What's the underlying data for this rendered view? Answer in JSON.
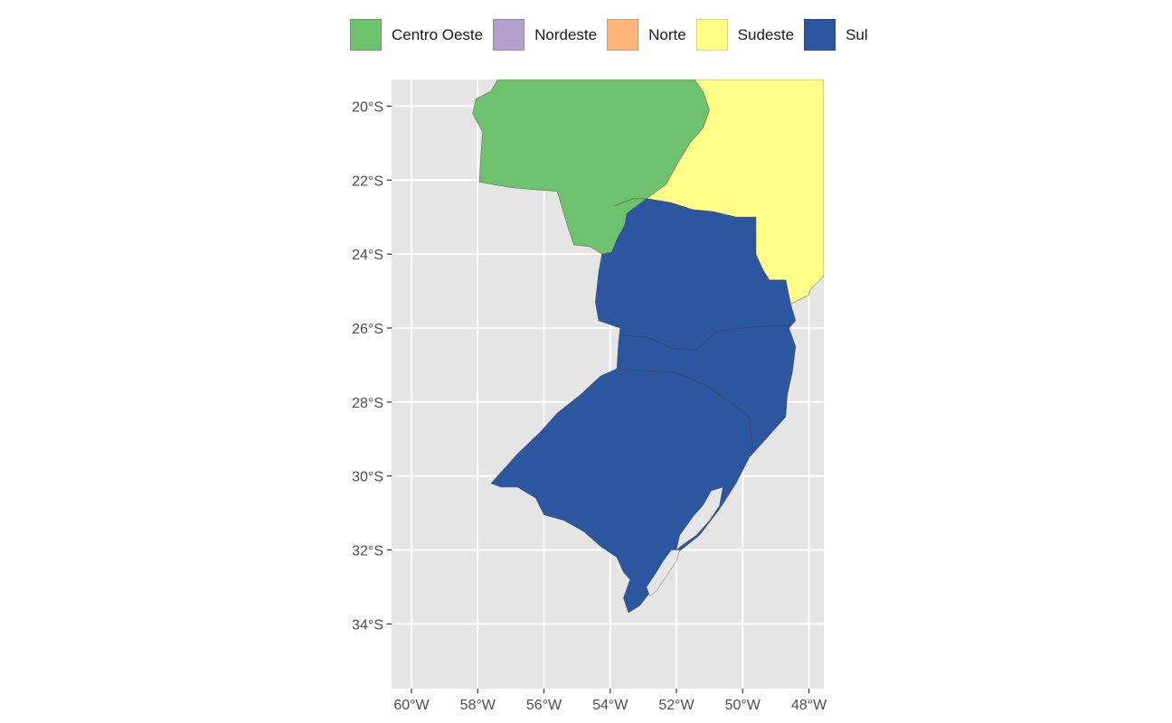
{
  "legend": {
    "items": [
      {
        "label": "Centro Oeste",
        "color": "#6fc26d"
      },
      {
        "label": "Nordeste",
        "color": "#b3a0cd"
      },
      {
        "label": "Norte",
        "color": "#fdb476"
      },
      {
        "label": "Sudeste",
        "color": "#ffff88"
      },
      {
        "label": "Sul",
        "color": "#2d56a0"
      }
    ]
  },
  "chart_data": {
    "type": "map",
    "title": "",
    "panel_background": "#e5e5e5",
    "grid": true,
    "grid_color": "#ffffff",
    "legend_position": "top",
    "xlim": [
      -60.6,
      -47.55
    ],
    "ylim": [
      -35.75,
      -19.28
    ],
    "x_ticks": [
      {
        "value": -60,
        "label": "60°W"
      },
      {
        "value": -58,
        "label": "58°W"
      },
      {
        "value": -56,
        "label": "56°W"
      },
      {
        "value": -54,
        "label": "54°W"
      },
      {
        "value": -52,
        "label": "52°W"
      },
      {
        "value": -50,
        "label": "50°W"
      },
      {
        "value": -48,
        "label": "48°W"
      }
    ],
    "y_ticks": [
      {
        "value": -20,
        "label": "20°S"
      },
      {
        "value": -22,
        "label": "22°S"
      },
      {
        "value": -24,
        "label": "24°S"
      },
      {
        "value": -26,
        "label": "26°S"
      },
      {
        "value": -28,
        "label": "28°S"
      },
      {
        "value": -30,
        "label": "30°S"
      },
      {
        "value": -32,
        "label": "32°S"
      },
      {
        "value": -34,
        "label": "34°S"
      }
    ],
    "regions": [
      {
        "name": "Centro Oeste",
        "color": "#6fc26d",
        "polygons": [
          [
            [
              -57.4,
              -19.28
            ],
            [
              -51.45,
              -19.28
            ],
            [
              -51.2,
              -19.6
            ],
            [
              -51.0,
              -20.1
            ],
            [
              -51.2,
              -20.6
            ],
            [
              -51.6,
              -21.0
            ],
            [
              -52.0,
              -21.6
            ],
            [
              -52.3,
              -22.1
            ],
            [
              -52.9,
              -22.5
            ],
            [
              -53.5,
              -22.9
            ],
            [
              -53.55,
              -23.2
            ],
            [
              -53.8,
              -23.6
            ],
            [
              -53.95,
              -23.95
            ],
            [
              -54.25,
              -24.0
            ],
            [
              -54.6,
              -23.8
            ],
            [
              -55.1,
              -23.75
            ],
            [
              -55.3,
              -23.2
            ],
            [
              -55.5,
              -22.6
            ],
            [
              -55.6,
              -22.3
            ],
            [
              -56.4,
              -22.25
            ],
            [
              -57.0,
              -22.2
            ],
            [
              -57.95,
              -22.05
            ],
            [
              -57.9,
              -21.3
            ],
            [
              -57.85,
              -20.7
            ],
            [
              -58.15,
              -20.2
            ],
            [
              -58.05,
              -19.8
            ],
            [
              -57.6,
              -19.6
            ]
          ]
        ]
      },
      {
        "name": "Sudeste",
        "color": "#ffff88",
        "polygons": [
          [
            [
              -51.45,
              -19.28
            ],
            [
              -47.55,
              -19.28
            ],
            [
              -47.55,
              -24.6
            ],
            [
              -47.95,
              -24.95
            ],
            [
              -48.0,
              -25.1
            ],
            [
              -48.55,
              -25.35
            ],
            [
              -48.7,
              -24.7
            ],
            [
              -49.2,
              -24.7
            ],
            [
              -49.4,
              -24.4
            ],
            [
              -49.6,
              -24.0
            ],
            [
              -49.6,
              -23.0
            ],
            [
              -50.2,
              -23.0
            ],
            [
              -50.9,
              -22.85
            ],
            [
              -51.5,
              -22.8
            ],
            [
              -52.2,
              -22.6
            ],
            [
              -52.9,
              -22.5
            ],
            [
              -52.3,
              -22.1
            ],
            [
              -52.0,
              -21.6
            ],
            [
              -51.6,
              -21.0
            ],
            [
              -51.2,
              -20.6
            ],
            [
              -51.0,
              -20.1
            ],
            [
              -51.2,
              -19.6
            ]
          ]
        ]
      },
      {
        "name": "Sul",
        "color": "#2d56a0",
        "polygons": [
          [
            [
              -52.9,
              -22.5
            ],
            [
              -52.2,
              -22.6
            ],
            [
              -51.5,
              -22.8
            ],
            [
              -50.9,
              -22.85
            ],
            [
              -50.2,
              -23.0
            ],
            [
              -49.6,
              -23.0
            ],
            [
              -49.6,
              -24.0
            ],
            [
              -49.4,
              -24.4
            ],
            [
              -49.2,
              -24.7
            ],
            [
              -48.7,
              -24.7
            ],
            [
              -48.55,
              -25.35
            ],
            [
              -48.4,
              -25.8
            ],
            [
              -48.6,
              -26.0
            ],
            [
              -48.4,
              -26.5
            ],
            [
              -48.5,
              -27.2
            ],
            [
              -48.65,
              -27.8
            ],
            [
              -48.7,
              -28.4
            ],
            [
              -49.2,
              -28.9
            ],
            [
              -49.8,
              -29.5
            ],
            [
              -50.2,
              -30.2
            ],
            [
              -50.7,
              -30.9
            ],
            [
              -51.3,
              -31.6
            ],
            [
              -52.0,
              -32.1
            ],
            [
              -52.5,
              -32.8
            ],
            [
              -53.1,
              -33.5
            ],
            [
              -53.45,
              -33.7
            ],
            [
              -53.6,
              -33.3
            ],
            [
              -53.4,
              -32.8
            ],
            [
              -53.6,
              -32.6
            ],
            [
              -53.8,
              -32.2
            ],
            [
              -54.3,
              -31.9
            ],
            [
              -54.8,
              -31.5
            ],
            [
              -55.4,
              -31.2
            ],
            [
              -56.0,
              -31.05
            ],
            [
              -56.25,
              -30.6
            ],
            [
              -56.8,
              -30.3
            ],
            [
              -57.3,
              -30.3
            ],
            [
              -57.6,
              -30.2
            ],
            [
              -57.3,
              -29.9
            ],
            [
              -56.8,
              -29.4
            ],
            [
              -56.1,
              -28.8
            ],
            [
              -55.6,
              -28.3
            ],
            [
              -54.9,
              -27.8
            ],
            [
              -54.3,
              -27.3
            ],
            [
              -53.8,
              -27.1
            ],
            [
              -53.75,
              -26.4
            ],
            [
              -53.7,
              -26.0
            ],
            [
              -54.35,
              -25.8
            ],
            [
              -54.45,
              -25.3
            ],
            [
              -54.35,
              -24.5
            ],
            [
              -54.25,
              -24.0
            ],
            [
              -53.95,
              -23.95
            ],
            [
              -53.8,
              -23.6
            ],
            [
              -53.55,
              -23.2
            ],
            [
              -53.5,
              -22.9
            ]
          ]
        ]
      }
    ],
    "lagoons": [
      [
        [
          -50.95,
          -30.4
        ],
        [
          -50.6,
          -30.3
        ],
        [
          -50.7,
          -30.8
        ],
        [
          -51.0,
          -31.2
        ],
        [
          -51.4,
          -31.6
        ],
        [
          -51.8,
          -31.85
        ],
        [
          -52.0,
          -32.0
        ],
        [
          -51.9,
          -31.6
        ],
        [
          -51.5,
          -31.1
        ],
        [
          -51.2,
          -30.8
        ]
      ],
      [
        [
          -52.15,
          -32.0
        ],
        [
          -51.9,
          -32.0
        ],
        [
          -52.0,
          -32.3
        ],
        [
          -52.3,
          -32.7
        ],
        [
          -52.6,
          -33.1
        ],
        [
          -52.8,
          -33.25
        ],
        [
          -52.9,
          -33.0
        ],
        [
          -52.6,
          -32.6
        ],
        [
          -52.4,
          -32.3
        ]
      ]
    ],
    "internal_borders": [
      [
        [
          -53.7,
          -26.2
        ],
        [
          -52.9,
          -26.25
        ],
        [
          -52.1,
          -26.55
        ],
        [
          -51.4,
          -26.6
        ],
        [
          -50.8,
          -26.1
        ],
        [
          -50.1,
          -26.0
        ],
        [
          -49.3,
          -25.95
        ],
        [
          -48.55,
          -25.95
        ]
      ],
      [
        [
          -53.8,
          -27.1
        ],
        [
          -53.0,
          -27.15
        ],
        [
          -52.0,
          -27.2
        ],
        [
          -51.0,
          -27.6
        ],
        [
          -50.1,
          -28.2
        ],
        [
          -49.8,
          -28.4
        ],
        [
          -49.7,
          -29.3
        ]
      ],
      [
        [
          -52.9,
          -22.5
        ],
        [
          -53.3,
          -22.5
        ],
        [
          -53.9,
          -22.7
        ]
      ]
    ]
  }
}
